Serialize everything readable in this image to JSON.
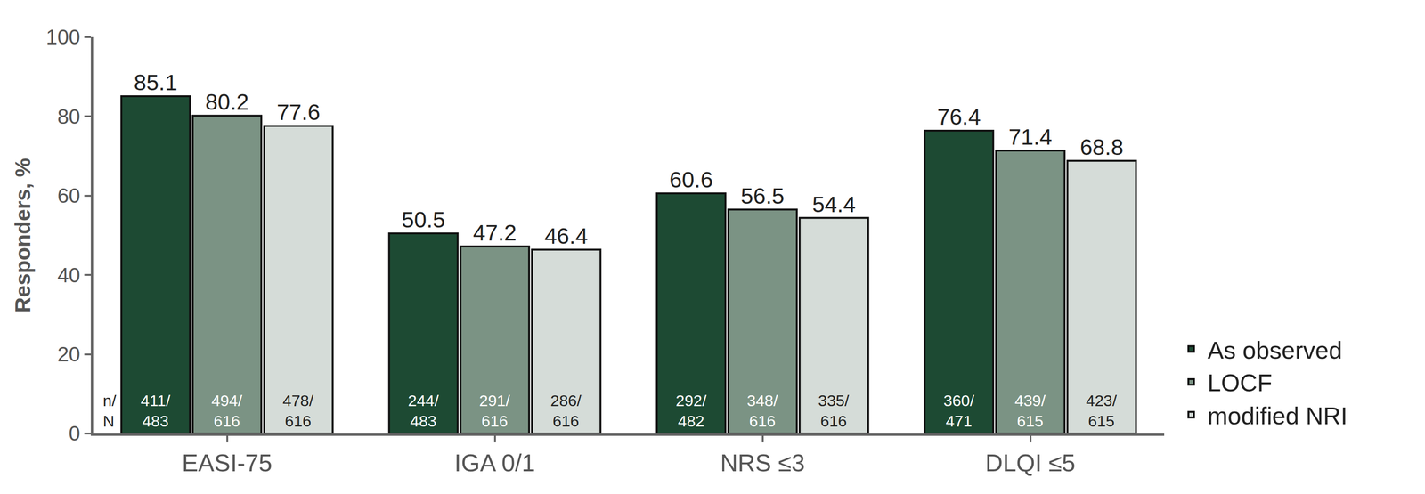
{
  "chart_data": {
    "type": "bar",
    "y_label": "Responders, %",
    "categories": [
      "EASI-75",
      "IGA 0/1",
      "NRS ≤3",
      "DLQI ≤5"
    ],
    "series": [
      {
        "name": "As observed",
        "color": "#1d4a33",
        "values": [
          85.1,
          50.5,
          60.6,
          76.4
        ],
        "counts": [
          "411/483",
          "244/483",
          "292/482",
          "360/471"
        ]
      },
      {
        "name": "LOCF",
        "color": "#7b9384",
        "values": [
          80.2,
          47.2,
          56.5,
          71.4
        ],
        "counts": [
          "494/616",
          "291/616",
          "348/616",
          "439/615"
        ]
      },
      {
        "name": "modified NRI",
        "color": "#d5dcd8",
        "values": [
          77.6,
          46.4,
          54.4,
          68.8
        ],
        "counts": [
          "478/616",
          "286/616",
          "335/616",
          "423/615"
        ]
      }
    ],
    "annotations": [
      "n/N"
    ],
    "ylim": [
      0,
      100
    ],
    "yticks": [
      0,
      20,
      40,
      60,
      80,
      100
    ],
    "grid": false,
    "legend": "right",
    "data_labels": true
  }
}
